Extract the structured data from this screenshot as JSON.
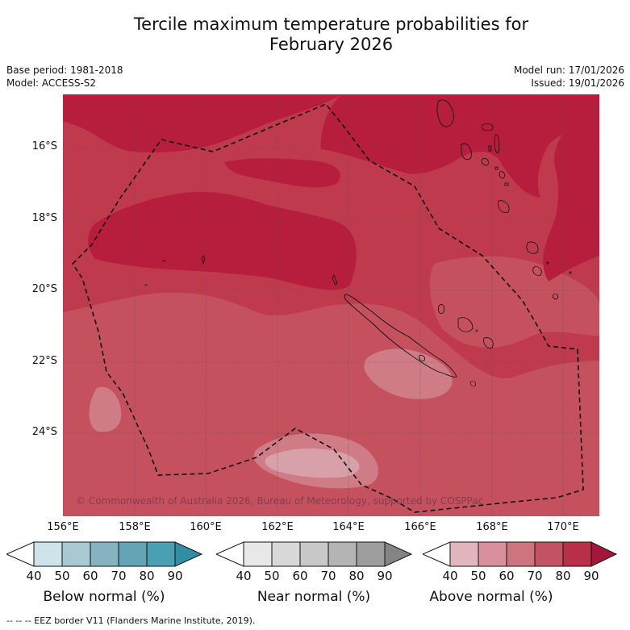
{
  "title_line1": "Tercile maximum temperature probabilities for",
  "title_line2": "February 2026",
  "base_period": "Base period: 1981-2018",
  "model": "Model: ACCESS-S2",
  "model_run": "Model run: 17/01/2026",
  "issued": "Issued: 19/01/2026",
  "latitude_labels": [
    "16°S",
    "18°S",
    "20°S",
    "22°S",
    "24°S"
  ],
  "longitude_labels": [
    "156°E",
    "158°E",
    "160°E",
    "162°E",
    "164°E",
    "166°E",
    "168°E",
    "170°E"
  ],
  "copyright": "© Commonwealth of Australia 2026, Bureau of Meteorology, supported by COSPPac",
  "colorbars": [
    {
      "label": "Below normal (%)",
      "ticks": [
        "40",
        "50",
        "60",
        "70",
        "80",
        "90"
      ],
      "colors": [
        "#ffffff",
        "#cde4ea",
        "#a7c9d0",
        "#85b4c0",
        "#64a5b5",
        "#48a0b2",
        "#2f8fa5"
      ]
    },
    {
      "label": "Near normal (%)",
      "ticks": [
        "40",
        "50",
        "60",
        "70",
        "80",
        "90"
      ],
      "colors": [
        "#ffffff",
        "#e8e8e8",
        "#d8d8d8",
        "#c8c8c8",
        "#b4b4b4",
        "#9e9e9e",
        "#848484"
      ]
    },
    {
      "label": "Above normal (%)",
      "ticks": [
        "40",
        "50",
        "60",
        "70",
        "80",
        "90"
      ],
      "colors": [
        "#ffffff",
        "#e2b6be",
        "#d8919c",
        "#cc7580",
        "#c25362",
        "#b83047",
        "#a3173a"
      ]
    }
  ],
  "footnote": "--  --  -- EEZ border V11 (Flanders Marine Institute, 2019).",
  "map_colors": {
    "c80": "#b71d3c",
    "c70": "#bf3a4d",
    "c60": "#c5515f",
    "c50": "#cf7c87",
    "c40": "#d8a0a8"
  }
}
